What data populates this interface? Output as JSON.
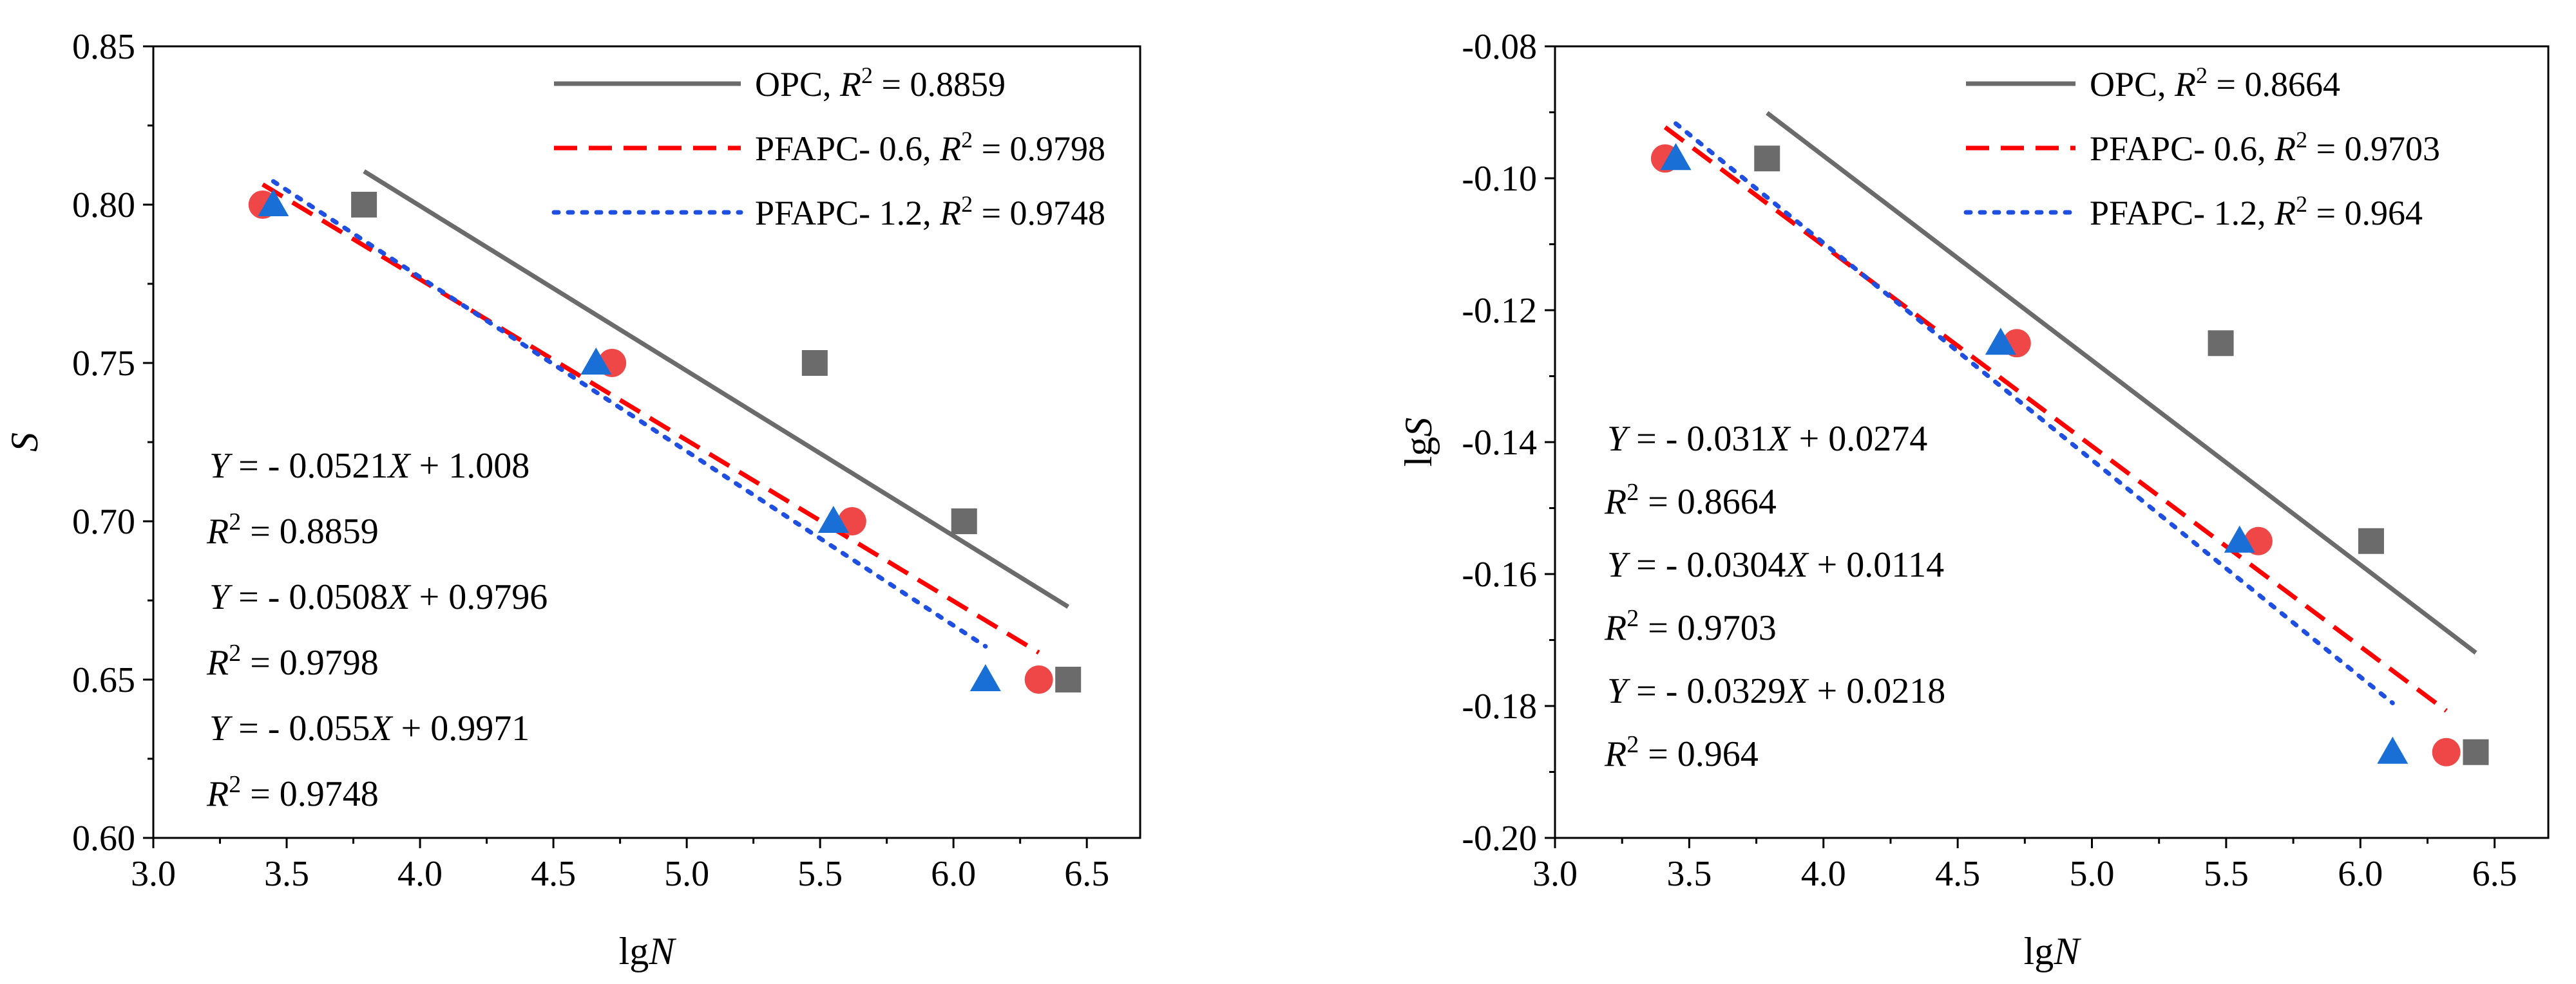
{
  "chart_data": [
    {
      "type": "scatter",
      "panel": "left",
      "xlabel": {
        "base": "lg",
        "italic": "N"
      },
      "ylabel": {
        "italic": "S"
      },
      "xlim": [
        3.0,
        6.7
      ],
      "ylim": [
        0.6,
        0.85
      ],
      "xticks": [
        "3.0",
        "3.5",
        "4.0",
        "4.5",
        "5.0",
        "5.5",
        "6.0",
        "6.5"
      ],
      "xtick_values": [
        3.0,
        3.5,
        4.0,
        4.5,
        5.0,
        5.5,
        6.0,
        6.5
      ],
      "yticks": [
        "0.60",
        "0.65",
        "0.70",
        "0.75",
        "0.80",
        "0.85"
      ],
      "ytick_values": [
        0.6,
        0.65,
        0.7,
        0.75,
        0.8,
        0.85
      ],
      "legend_position": "top-right",
      "series": [
        {
          "name": "OPC",
          "r2_label": "R",
          "r2_value": "0.8859",
          "marker": "square",
          "color": "#6b6b6b",
          "line_style": "solid",
          "points": [
            [
              3.79,
              0.8
            ],
            [
              5.48,
              0.75
            ],
            [
              6.04,
              0.7
            ],
            [
              6.43,
              0.65
            ]
          ],
          "fit": {
            "slope": -0.0521,
            "intercept": 1.008,
            "x_range": [
              3.79,
              6.43
            ]
          }
        },
        {
          "name": "PFAPC- 0.6",
          "r2_label": "R",
          "r2_value": "0.9798",
          "marker": "circle",
          "color": "#ef4747",
          "line_style": "dashed",
          "line_color": "#ff0000",
          "points": [
            [
              3.41,
              0.8
            ],
            [
              4.72,
              0.75
            ],
            [
              5.62,
              0.7
            ],
            [
              6.32,
              0.65
            ]
          ],
          "fit": {
            "slope": -0.0508,
            "intercept": 0.9796,
            "x_range": [
              3.41,
              6.32
            ]
          }
        },
        {
          "name": "PFAPC- 1.2",
          "r2_label": "R",
          "r2_value": "0.9748",
          "marker": "triangle",
          "color": "#1a6fd6",
          "line_style": "dotted",
          "line_color": "#1f4fe0",
          "points": [
            [
              3.45,
              0.8
            ],
            [
              4.66,
              0.75
            ],
            [
              5.55,
              0.7
            ],
            [
              6.12,
              0.65
            ]
          ],
          "fit": {
            "slope": -0.055,
            "intercept": 0.9971,
            "x_range": [
              3.45,
              6.12
            ]
          }
        }
      ],
      "equations": [
        {
          "prefix": "Y",
          "body": " = - 0.0521",
          "var": "X",
          "tail": " + 1.008"
        },
        {
          "r": "R",
          "rest": " = 0.8859"
        },
        {
          "prefix": "Y",
          "body": " = - 0.0508",
          "var": "X",
          "tail": " + 0.9796"
        },
        {
          "r": "R",
          "rest": " = 0.9798"
        },
        {
          "prefix": "Y",
          "body": " = - 0.055",
          "var": "X",
          "tail": " + 0.9971"
        },
        {
          "r": "R",
          "rest": " = 0.9748"
        }
      ]
    },
    {
      "type": "scatter",
      "panel": "right",
      "xlabel": {
        "base": "lg",
        "italic": "N"
      },
      "ylabel": {
        "base": "lg",
        "italic": "S"
      },
      "xlim": [
        3.0,
        6.7
      ],
      "ylim": [
        -0.2,
        -0.08
      ],
      "xticks": [
        "3.0",
        "3.5",
        "4.0",
        "4.5",
        "5.0",
        "5.5",
        "6.0",
        "6.5"
      ],
      "xtick_values": [
        3.0,
        3.5,
        4.0,
        4.5,
        5.0,
        5.5,
        6.0,
        6.5
      ],
      "yticks": [
        "-0.20",
        "-0.18",
        "-0.16",
        "-0.14",
        "-0.12",
        "-0.10",
        "-0.08"
      ],
      "ytick_values": [
        -0.2,
        -0.18,
        -0.16,
        -0.14,
        -0.12,
        -0.1,
        -0.08
      ],
      "legend_position": "top-right",
      "series": [
        {
          "name": "OPC",
          "r2_label": "R",
          "r2_value": "0.8664",
          "marker": "square",
          "color": "#6b6b6b",
          "line_style": "solid",
          "points": [
            [
              3.79,
              -0.097
            ],
            [
              5.48,
              -0.125
            ],
            [
              6.04,
              -0.155
            ],
            [
              6.43,
              -0.187
            ]
          ],
          "fit": {
            "slope": -0.031,
            "intercept": 0.0274,
            "x_range": [
              3.79,
              6.43
            ]
          }
        },
        {
          "name": "PFAPC- 0.6",
          "r2_label": "R",
          "r2_value": "0.9703",
          "marker": "circle",
          "color": "#ef4747",
          "line_style": "dashed",
          "line_color": "#ff0000",
          "points": [
            [
              3.41,
              -0.097
            ],
            [
              4.72,
              -0.125
            ],
            [
              5.62,
              -0.155
            ],
            [
              6.32,
              -0.187
            ]
          ],
          "fit": {
            "slope": -0.0304,
            "intercept": 0.0114,
            "x_range": [
              3.41,
              6.32
            ]
          }
        },
        {
          "name": "PFAPC- 1.2",
          "r2_label": "R",
          "r2_value": "0.964",
          "marker": "triangle",
          "color": "#1a6fd6",
          "line_style": "dotted",
          "line_color": "#1f4fe0",
          "points": [
            [
              3.45,
              -0.097
            ],
            [
              4.66,
              -0.125
            ],
            [
              5.55,
              -0.155
            ],
            [
              6.12,
              -0.187
            ]
          ],
          "fit": {
            "slope": -0.0329,
            "intercept": 0.0218,
            "x_range": [
              3.45,
              6.12
            ]
          }
        }
      ],
      "equations": [
        {
          "prefix": "Y",
          "body": " = - 0.031",
          "var": "X",
          "tail": " + 0.0274"
        },
        {
          "r": "R",
          "rest": " = 0.8664"
        },
        {
          "prefix": "Y",
          "body": " = - 0.0304",
          "var": "X",
          "tail": " + 0.0114"
        },
        {
          "r": "R",
          "rest": " = 0.9703"
        },
        {
          "prefix": "Y",
          "body": " = - 0.0329",
          "var": "X",
          "tail": " + 0.0218"
        },
        {
          "r": "R",
          "rest": " = 0.964"
        }
      ]
    }
  ],
  "superscript": "2"
}
